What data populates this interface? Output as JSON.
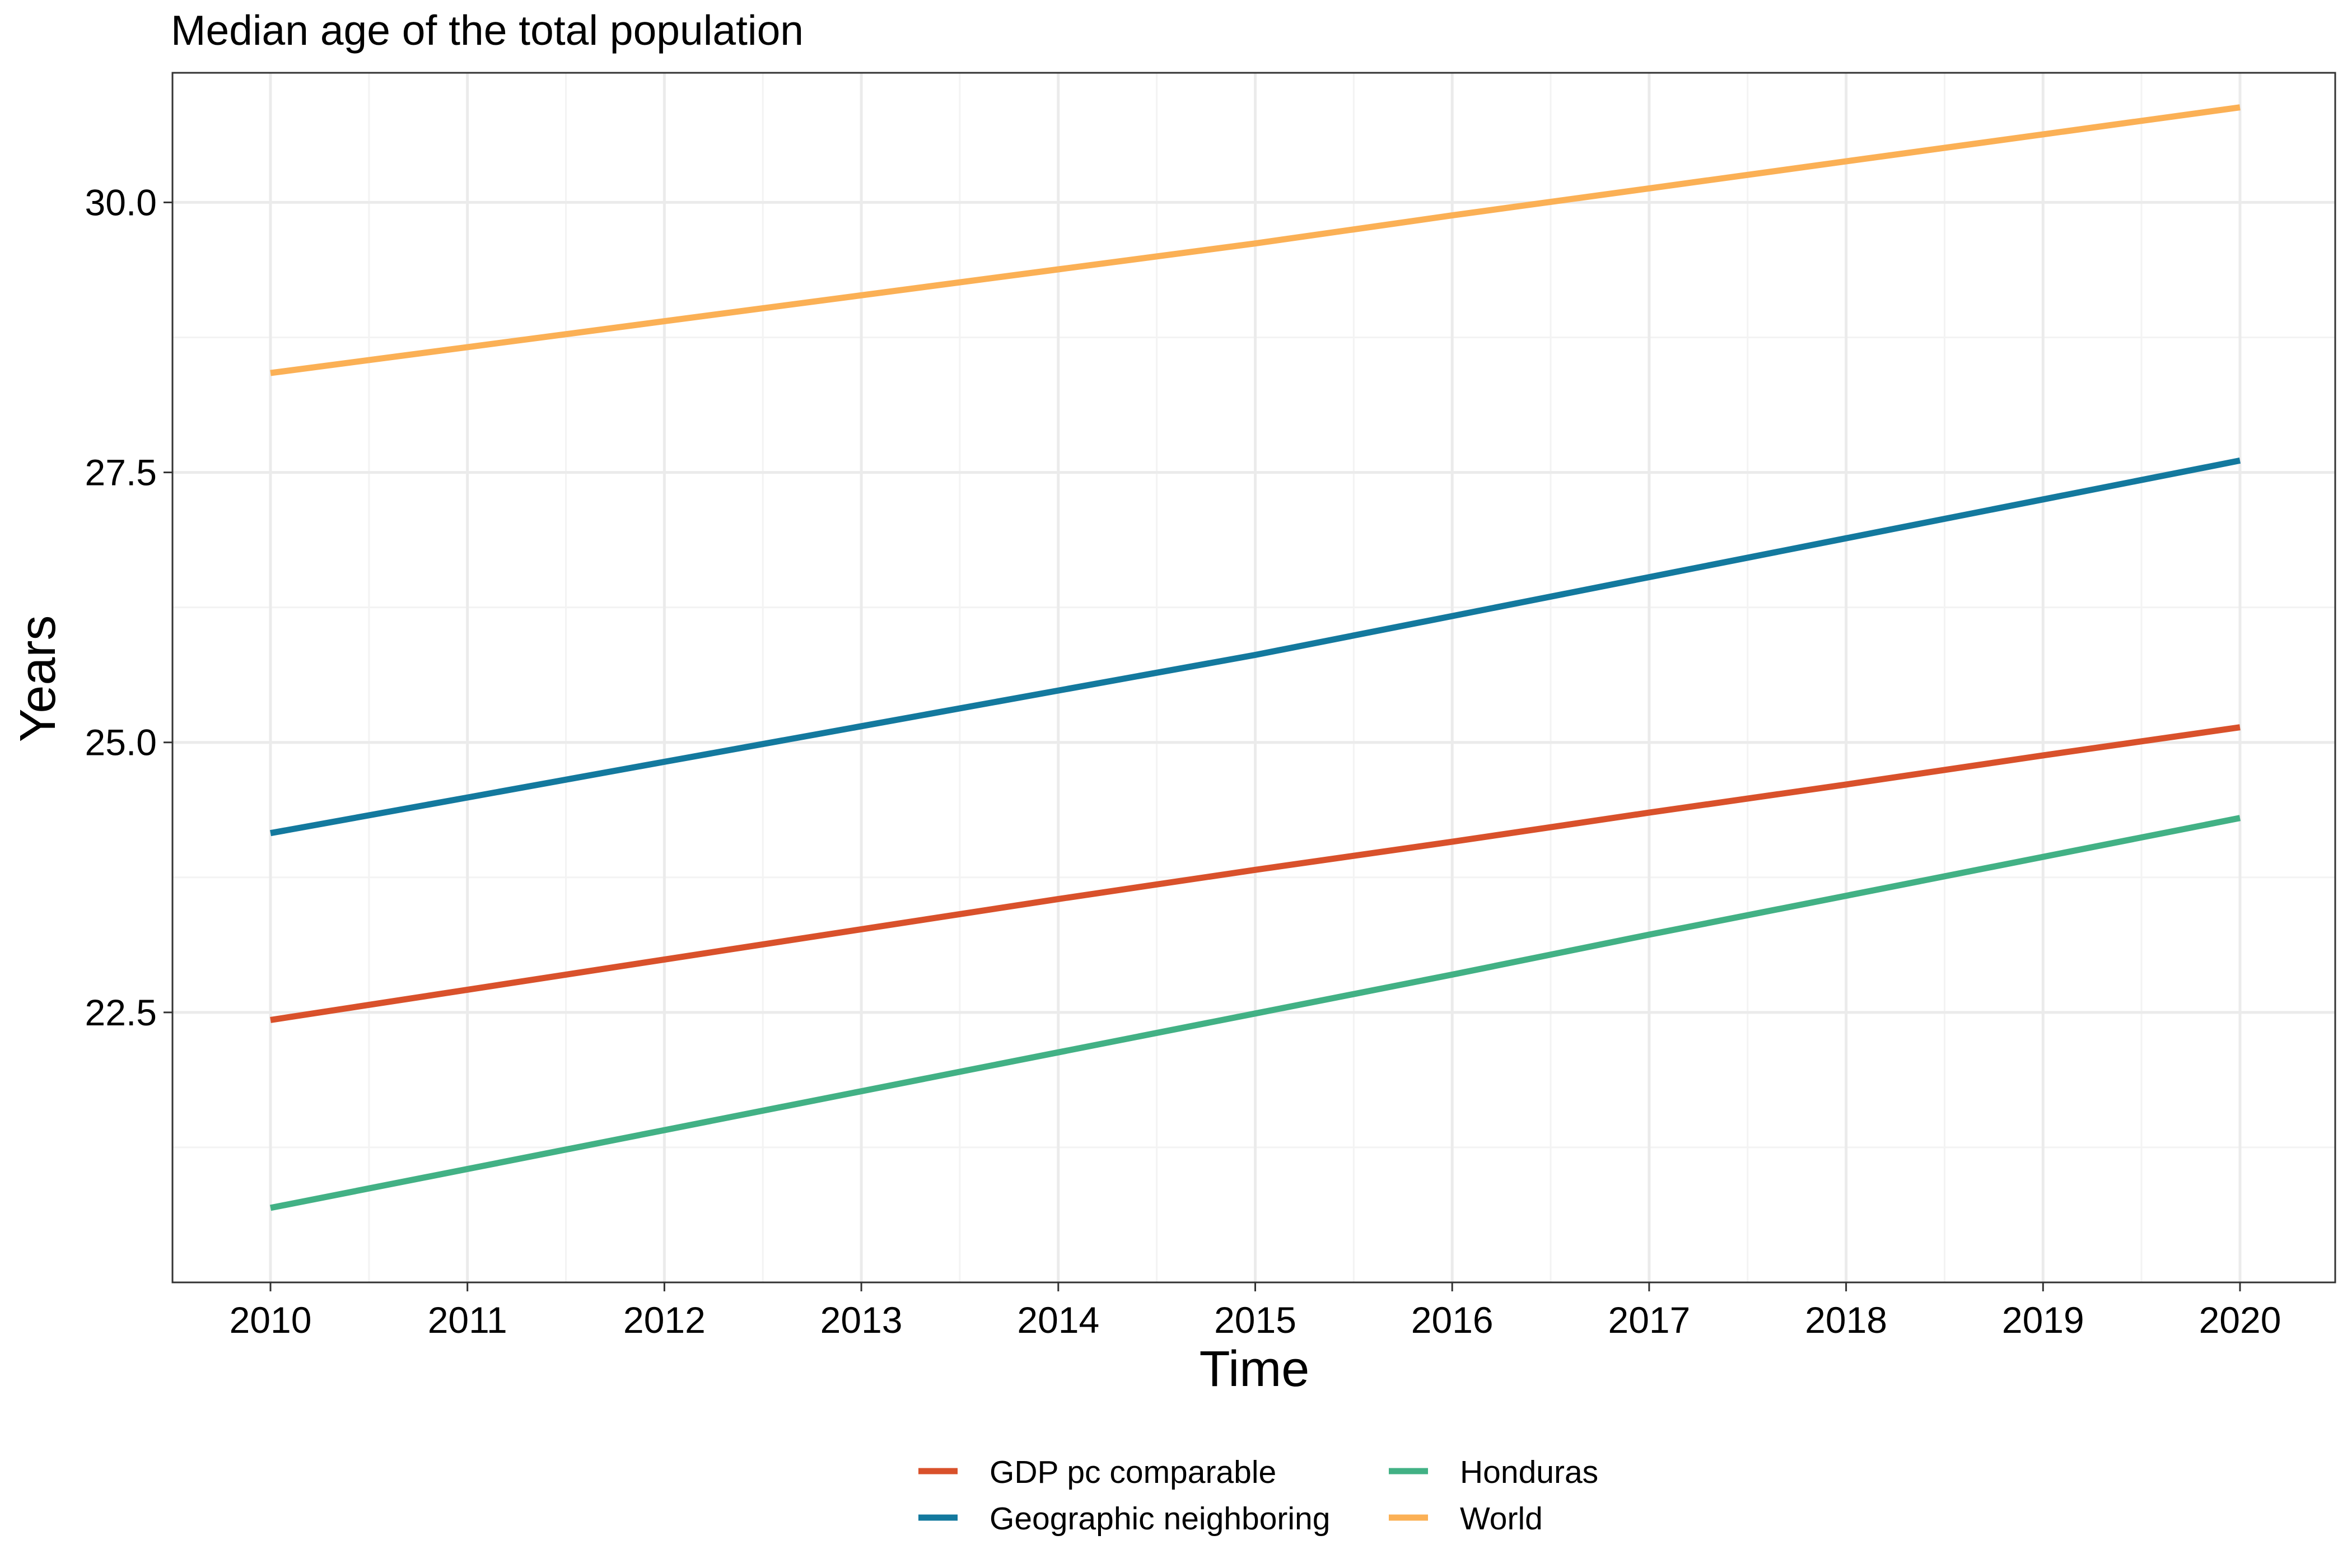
{
  "chart_data": {
    "type": "line",
    "title": "Median age of the total population",
    "xlabel": "Time",
    "ylabel": "Years",
    "x": [
      2010,
      2011,
      2012,
      2013,
      2014,
      2015,
      2016,
      2017,
      2018,
      2019,
      2020
    ],
    "x_ticks": [
      "2010",
      "2011",
      "2012",
      "2013",
      "2014",
      "2015",
      "2016",
      "2017",
      "2018",
      "2019",
      "2020"
    ],
    "y_ticks": [
      "22.5",
      "25.0",
      "27.5",
      "30.0"
    ],
    "ylim": [
      20.0,
      31.2
    ],
    "grid": true,
    "legend_position": "bottom",
    "series": [
      {
        "name": "GDP pc comparable",
        "color": "#d9512b",
        "values": [
          22.43,
          22.71,
          22.99,
          23.27,
          23.55,
          23.82,
          24.08,
          24.35,
          24.61,
          24.88,
          25.14
        ]
      },
      {
        "name": "Geographic neighboring",
        "color": "#13799e",
        "values": [
          24.16,
          24.49,
          24.82,
          25.15,
          25.48,
          25.81,
          26.17,
          26.53,
          26.89,
          27.25,
          27.61
        ]
      },
      {
        "name": "Honduras",
        "color": "#42b185",
        "values": [
          20.69,
          21.05,
          21.41,
          21.77,
          22.13,
          22.49,
          22.85,
          23.22,
          23.58,
          23.94,
          24.3
        ]
      },
      {
        "name": "World",
        "color": "#fbb055",
        "values": [
          28.42,
          28.66,
          28.9,
          29.14,
          29.38,
          29.62,
          29.88,
          30.13,
          30.38,
          30.63,
          30.88
        ]
      }
    ]
  }
}
